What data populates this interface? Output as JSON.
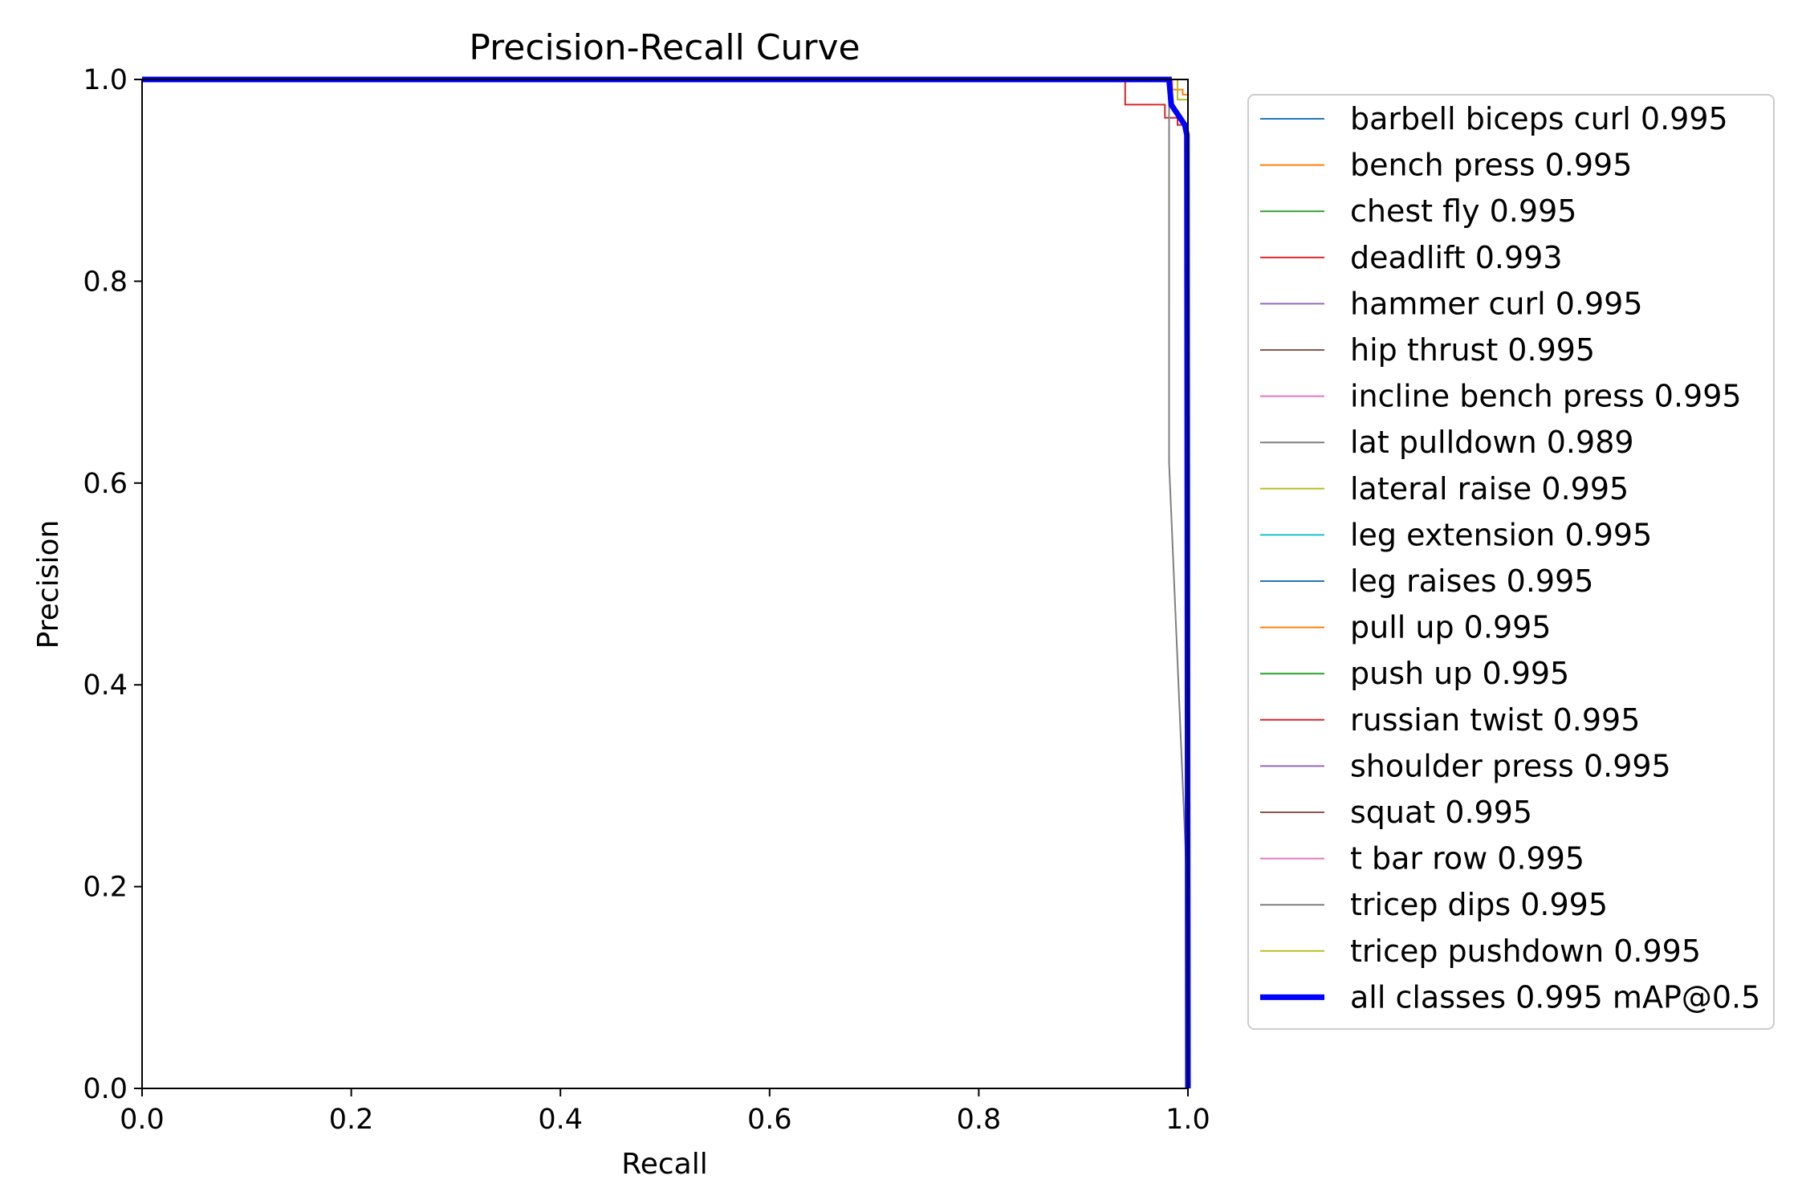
{
  "chart_data": {
    "type": "line",
    "title": "Precision-Recall Curve",
    "xlabel": "Recall",
    "ylabel": "Precision",
    "xlim": [
      0.0,
      1.0
    ],
    "ylim": [
      0.0,
      1.0
    ],
    "x_ticks": [
      "0.0",
      "0.2",
      "0.4",
      "0.6",
      "0.8",
      "1.0"
    ],
    "y_ticks": [
      "0.0",
      "0.2",
      "0.4",
      "0.6",
      "0.8",
      "1.0"
    ],
    "grid": false,
    "legend_position": "outside right",
    "series": [
      {
        "name": "barbell biceps curl 0.995",
        "color": "#1f77b4",
        "x": [
          0.0,
          1.0,
          1.0
        ],
        "y": [
          1.0,
          1.0,
          0.0
        ]
      },
      {
        "name": "bench press 0.995",
        "color": "#ff7f0e",
        "x": [
          0.0,
          0.985,
          0.985,
          0.995,
          0.995,
          1.0,
          1.0
        ],
        "y": [
          1.0,
          1.0,
          0.99,
          0.99,
          0.985,
          0.985,
          0.0
        ]
      },
      {
        "name": "chest fly 0.995",
        "color": "#2ca02c",
        "x": [
          0.0,
          1.0,
          1.0
        ],
        "y": [
          1.0,
          1.0,
          0.0
        ]
      },
      {
        "name": "deadlift 0.993",
        "color": "#d62728",
        "x": [
          0.0,
          0.94,
          0.94,
          0.978,
          0.978,
          0.99,
          0.99,
          1.0,
          1.0
        ],
        "y": [
          1.0,
          1.0,
          0.975,
          0.975,
          0.962,
          0.962,
          0.955,
          0.955,
          0.0
        ]
      },
      {
        "name": "hammer curl 0.995",
        "color": "#9467bd",
        "x": [
          0.0,
          1.0,
          1.0
        ],
        "y": [
          1.0,
          1.0,
          0.0
        ]
      },
      {
        "name": "hip thrust 0.995",
        "color": "#8c564b",
        "x": [
          0.0,
          1.0,
          1.0
        ],
        "y": [
          1.0,
          1.0,
          0.0
        ]
      },
      {
        "name": "incline bench press 0.995",
        "color": "#e377c2",
        "x": [
          0.0,
          1.0,
          1.0
        ],
        "y": [
          1.0,
          1.0,
          0.0
        ]
      },
      {
        "name": "lat pulldown 0.989",
        "color": "#7f7f7f",
        "x": [
          0.0,
          0.982,
          0.982,
          1.0,
          1.0
        ],
        "y": [
          1.0,
          1.0,
          0.62,
          0.18,
          0.0
        ]
      },
      {
        "name": "lateral raise 0.995",
        "color": "#bcbd22",
        "x": [
          0.0,
          0.99,
          0.99,
          1.0,
          1.0
        ],
        "y": [
          1.0,
          1.0,
          0.98,
          0.98,
          0.0
        ]
      },
      {
        "name": "leg extension 0.995",
        "color": "#17becf",
        "x": [
          0.0,
          1.0,
          1.0
        ],
        "y": [
          1.0,
          1.0,
          0.0
        ]
      },
      {
        "name": "leg raises 0.995",
        "color": "#1f77b4",
        "x": [
          0.0,
          1.0,
          1.0
        ],
        "y": [
          1.0,
          1.0,
          0.0
        ]
      },
      {
        "name": "pull up 0.995",
        "color": "#ff7f0e",
        "x": [
          0.0,
          1.0,
          1.0
        ],
        "y": [
          1.0,
          1.0,
          0.0
        ]
      },
      {
        "name": "push up 0.995",
        "color": "#2ca02c",
        "x": [
          0.0,
          1.0,
          1.0
        ],
        "y": [
          1.0,
          1.0,
          0.0
        ]
      },
      {
        "name": "russian twist 0.995",
        "color": "#d62728",
        "x": [
          0.0,
          1.0,
          1.0
        ],
        "y": [
          1.0,
          1.0,
          0.0
        ]
      },
      {
        "name": "shoulder press 0.995",
        "color": "#9467bd",
        "x": [
          0.0,
          1.0,
          1.0
        ],
        "y": [
          1.0,
          1.0,
          0.0
        ]
      },
      {
        "name": "squat 0.995",
        "color": "#8c564b",
        "x": [
          0.0,
          1.0,
          1.0
        ],
        "y": [
          1.0,
          1.0,
          0.0
        ]
      },
      {
        "name": "t bar row 0.995",
        "color": "#e377c2",
        "x": [
          0.0,
          1.0,
          1.0
        ],
        "y": [
          1.0,
          1.0,
          0.0
        ]
      },
      {
        "name": "tricep dips 0.995",
        "color": "#7f7f7f",
        "x": [
          0.0,
          1.0,
          1.0
        ],
        "y": [
          1.0,
          1.0,
          0.0
        ]
      },
      {
        "name": "tricep pushdown 0.995",
        "color": "#bcbd22",
        "x": [
          0.0,
          1.0,
          1.0
        ],
        "y": [
          1.0,
          1.0,
          0.0
        ]
      },
      {
        "name": "all classes 0.995 mAP@0.5",
        "color": "#0000ff",
        "bold": true,
        "x": [
          0.0,
          0.982,
          0.984,
          0.997,
          0.999,
          1.0
        ],
        "y": [
          1.0,
          1.0,
          0.975,
          0.955,
          0.945,
          0.0
        ]
      }
    ]
  }
}
